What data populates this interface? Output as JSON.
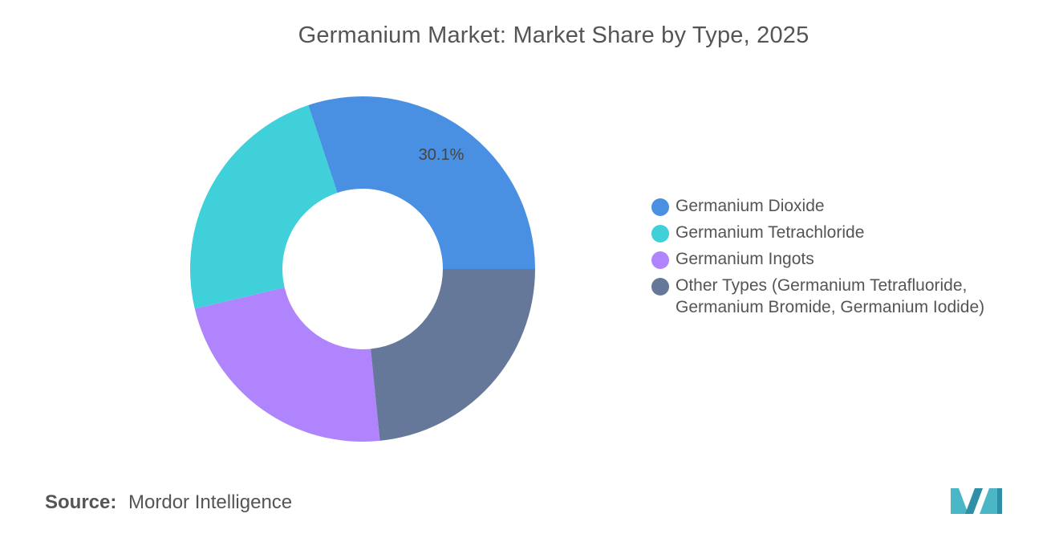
{
  "chart_data": {
    "type": "pie",
    "variant": "donut",
    "title": "Germanium Market: Market Share by Type, 2025",
    "legend_position": "right",
    "series": [
      {
        "name": "Germanium Dioxide",
        "value": 30.1,
        "color": "#4a90e2",
        "label": "30.1%"
      },
      {
        "name": "Germanium Tetrachloride",
        "value": 23.6,
        "color": "#3fd0da",
        "label": ""
      },
      {
        "name": "Germanium Ingots",
        "value": 22.9,
        "color": "#b084fc",
        "label": ""
      },
      {
        "name": "Other Types (Germanium Tetrafluoride, Germanium Bromide, Germanium Iodide)",
        "value": 23.4,
        "color": "#66789a",
        "label": ""
      }
    ]
  },
  "legend": {
    "items": [
      {
        "label": "Germanium Dioxide",
        "color": "#4a90e2"
      },
      {
        "label": "Germanium Tetrachloride",
        "color": "#3fd0da"
      },
      {
        "label": "Germanium Ingots",
        "color": "#b084fc"
      },
      {
        "label": "Other Types (Germanium Tetrafluoride, Germanium Bromide, Germanium Iodide)",
        "color": "#66789a"
      }
    ]
  },
  "source": {
    "label": "Source:",
    "value": "Mordor Intelligence"
  },
  "logo": {
    "icon": "mordor-intelligence-logo-icon",
    "color": "#4ab6c6"
  }
}
